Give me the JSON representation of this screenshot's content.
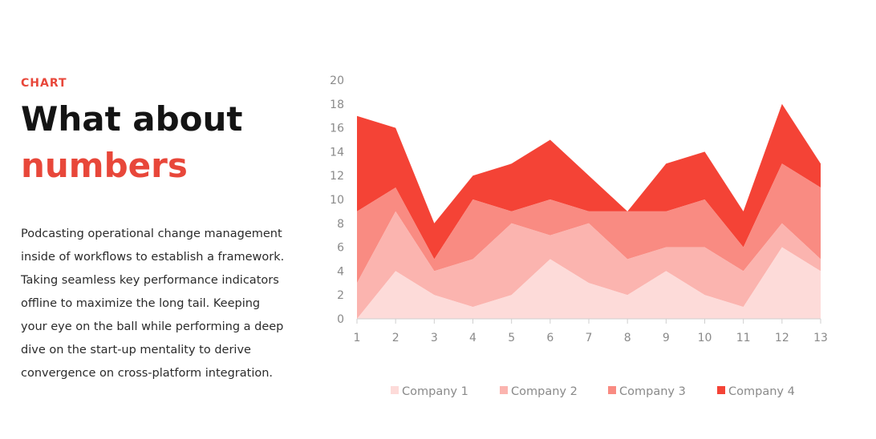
{
  "intro": {
    "eyebrow": "CHART",
    "title_line1": "What about",
    "title_line2": "numbers",
    "description": "Podcasting operational change management inside of workflows to establish a framework. Taking seamless key performance indicators offline to maximize the long tail. Keeping your eye on the ball while performing a deep dive on the start-up mentality to derive convergence on cross-platform integration."
  },
  "colors": {
    "accent": "#e8473a",
    "title": "#141414",
    "axis_text": "#8a8a8a"
  },
  "chart_data": {
    "type": "area",
    "stacked": true,
    "title": "",
    "xlabel": "",
    "ylabel": "",
    "x": [
      1,
      2,
      3,
      4,
      5,
      6,
      7,
      8,
      9,
      10,
      11,
      12,
      13
    ],
    "yticks": [
      0,
      2,
      4,
      6,
      8,
      10,
      12,
      14,
      16,
      18,
      20
    ],
    "ylim": [
      0,
      20
    ],
    "grid": false,
    "legend_position": "bottom",
    "series": [
      {
        "name": "Company 1",
        "color": "#fddbd9",
        "values": [
          0,
          4,
          2,
          1,
          2,
          5,
          3,
          2,
          4,
          2,
          1,
          6,
          4
        ]
      },
      {
        "name": "Company 2",
        "color": "#fbb4af",
        "values": [
          3,
          5,
          2,
          4,
          6,
          2,
          5,
          3,
          2,
          4,
          3,
          2,
          1
        ]
      },
      {
        "name": "Company 3",
        "color": "#f98b82",
        "values": [
          6,
          2,
          1,
          5,
          1,
          3,
          1,
          4,
          3,
          4,
          2,
          5,
          6
        ]
      },
      {
        "name": "Company 4",
        "color": "#f44336",
        "values": [
          8,
          5,
          3,
          2,
          4,
          5,
          3,
          0,
          4,
          4,
          3,
          5,
          2
        ]
      }
    ]
  }
}
